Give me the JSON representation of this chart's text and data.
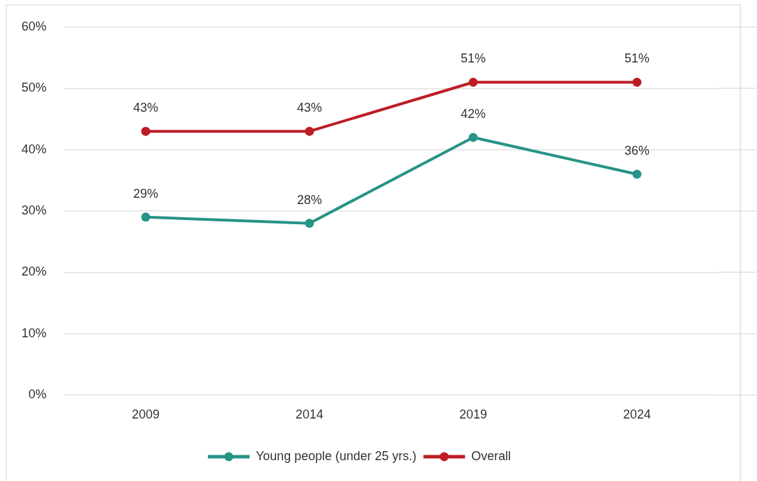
{
  "chart_data": {
    "type": "line",
    "categories": [
      "2009",
      "2014",
      "2019",
      "2024"
    ],
    "series": [
      {
        "name": "Young people (under 25 yrs.)",
        "color": "#269486",
        "values": [
          29,
          28,
          42,
          36
        ],
        "value_labels": [
          "29%",
          "28%",
          "42%",
          "36%"
        ]
      },
      {
        "name": "Overall",
        "color": "#bd1c24",
        "values": [
          43,
          43,
          51,
          51
        ],
        "value_labels": [
          "43%",
          "43%",
          "51%",
          "51%"
        ]
      }
    ],
    "ylim": [
      0,
      60
    ],
    "yticks": [
      {
        "value": 0,
        "label": "0%"
      },
      {
        "value": 10,
        "label": "10%"
      },
      {
        "value": 20,
        "label": "20%"
      },
      {
        "value": 30,
        "label": "30%"
      },
      {
        "value": 40,
        "label": "40%"
      },
      {
        "value": 50,
        "label": "50%"
      },
      {
        "value": 60,
        "label": "60%"
      }
    ],
    "grid": "y",
    "legend": "bottom",
    "marker": "circle",
    "line_style": "solid"
  }
}
